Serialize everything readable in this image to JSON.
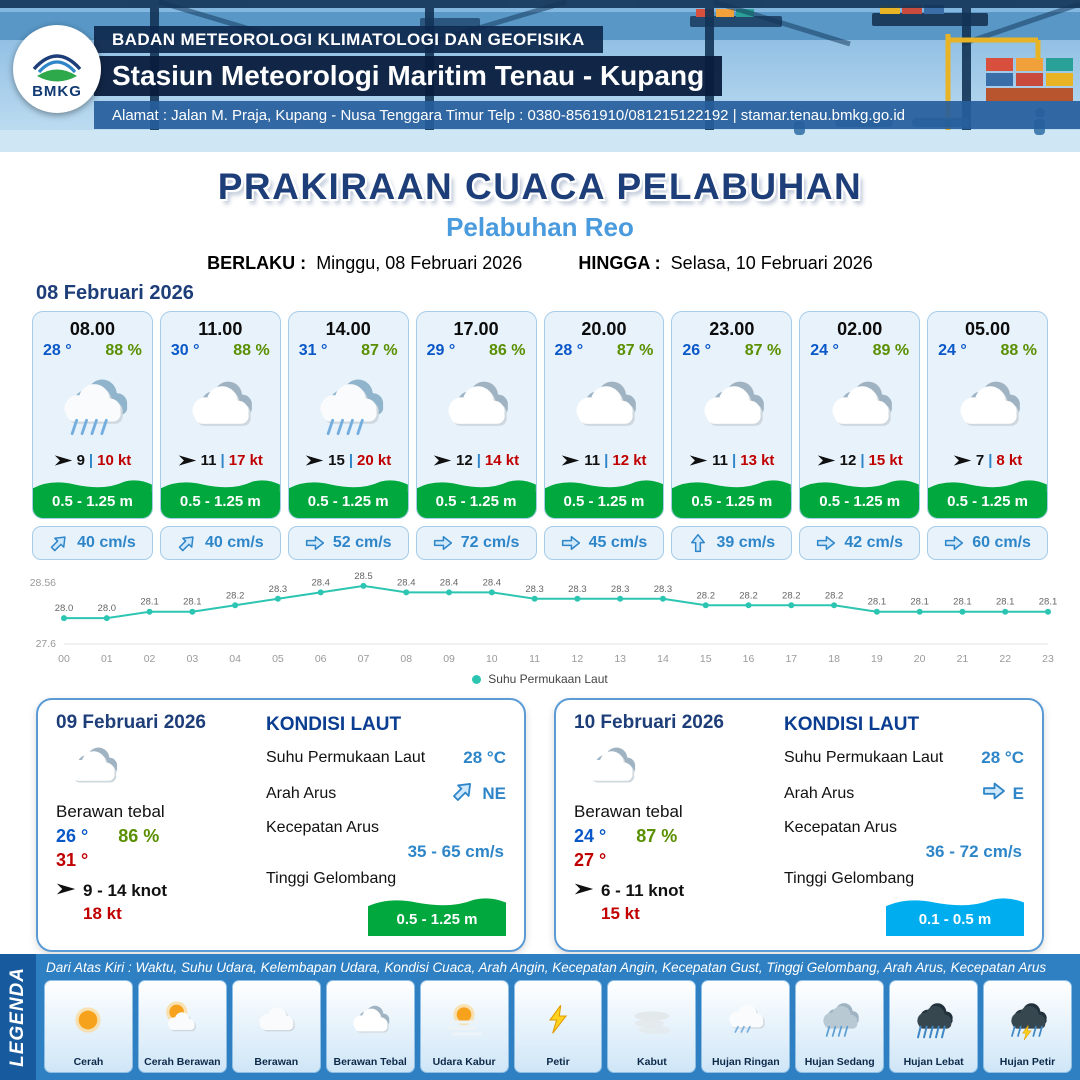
{
  "header": {
    "logo_label": "BMKG",
    "agency": "BADAN METEOROLOGI KLIMATOLOGI DAN GEOFISIKA",
    "station": "Stasiun Meteorologi Maritim Tenau - Kupang",
    "address": "Alamat : Jalan M. Praja, Kupang - Nusa Tenggara Timur Telp : 0380-8561910/081215122192  | stamar.tenau.bmkg.go.id"
  },
  "title": {
    "main": "PRAKIRAAN CUACA PELABUHAN",
    "subtitle": "Pelabuhan Reo",
    "berlaku_label": "BERLAKU :",
    "berlaku_value": "Minggu, 08 Februari 2026",
    "hingga_label": "HINGGA :",
    "hingga_value": "Selasa, 10 Februari 2026"
  },
  "labels": {
    "wind_sep": "|"
  },
  "forecast_date": "08 Februari 2026",
  "colors": {
    "wave_green": "#00a83e",
    "wave_blue": "#00aeef",
    "sst_line": "#2cc5b2",
    "accent_navy": "#1d3e78",
    "accent_blue": "#2e86c9",
    "temp_blue": "#0a58c8",
    "humidity_green": "#5a8f00",
    "gust_red": "#c00000"
  },
  "hourly": [
    {
      "time": "08.00",
      "temp": "28 °",
      "rh": "88 %",
      "icon": "rain",
      "wind_speed": "9",
      "gust": "10 kt",
      "wave": "0.5 - 1.25 m",
      "current": "40 cm/s",
      "current_dir": "NE"
    },
    {
      "time": "11.00",
      "temp": "30 °",
      "rh": "88 %",
      "icon": "cloud-thick",
      "wind_speed": "11",
      "gust": "17 kt",
      "wave": "0.5 - 1.25 m",
      "current": "40 cm/s",
      "current_dir": "NE"
    },
    {
      "time": "14.00",
      "temp": "31 °",
      "rh": "87 %",
      "icon": "rain",
      "wind_speed": "15",
      "gust": "20 kt",
      "wave": "0.5 - 1.25 m",
      "current": "52 cm/s",
      "current_dir": "E"
    },
    {
      "time": "17.00",
      "temp": "29 °",
      "rh": "86 %",
      "icon": "cloud-thick",
      "wind_speed": "12",
      "gust": "14 kt",
      "wave": "0.5 - 1.25 m",
      "current": "72 cm/s",
      "current_dir": "E"
    },
    {
      "time": "20.00",
      "temp": "28 °",
      "rh": "87 %",
      "icon": "cloud-thick",
      "wind_speed": "11",
      "gust": "12 kt",
      "wave": "0.5 - 1.25 m",
      "current": "45 cm/s",
      "current_dir": "E"
    },
    {
      "time": "23.00",
      "temp": "26 °",
      "rh": "87 %",
      "icon": "cloud-thick",
      "wind_speed": "11",
      "gust": "13 kt",
      "wave": "0.5 - 1.25 m",
      "current": "39 cm/s",
      "current_dir": "N"
    },
    {
      "time": "02.00",
      "temp": "24 °",
      "rh": "89 %",
      "icon": "cloud-thick",
      "wind_speed": "12",
      "gust": "15 kt",
      "wave": "0.5 - 1.25 m",
      "current": "42 cm/s",
      "current_dir": "E"
    },
    {
      "time": "05.00",
      "temp": "24 °",
      "rh": "88 %",
      "icon": "cloud-thick",
      "wind_speed": "7",
      "gust": "8 kt",
      "wave": "0.5 - 1.25 m",
      "current": "60 cm/s",
      "current_dir": "E"
    }
  ],
  "chart_data": {
    "type": "line",
    "series_name": "Suhu Permukaan Laut",
    "x": [
      "00",
      "01",
      "02",
      "03",
      "04",
      "05",
      "06",
      "07",
      "08",
      "09",
      "10",
      "11",
      "12",
      "13",
      "14",
      "15",
      "16",
      "17",
      "18",
      "19",
      "20",
      "21",
      "22",
      "23"
    ],
    "values": [
      28.0,
      28.0,
      28.1,
      28.1,
      28.2,
      28.3,
      28.4,
      28.5,
      28.4,
      28.4,
      28.4,
      28.3,
      28.3,
      28.3,
      28.3,
      28.2,
      28.2,
      28.2,
      28.2,
      28.1,
      28.1,
      28.1,
      28.1,
      28.1
    ],
    "ylim": [
      27.6,
      28.56
    ],
    "ylabel": "",
    "xlabel": "",
    "grid": false,
    "legend_position": "bottom",
    "line_color": "#2cc5b2"
  },
  "sea_labels": {
    "title": "KONDISI LAUT",
    "sst": "Suhu Permukaan Laut",
    "current_dir": "Arah Arus",
    "current_speed": "Kecepatan Arus",
    "wave": "Tinggi Gelombang"
  },
  "daily": [
    {
      "date": "09 Februari 2026",
      "icon": "cloud-thick",
      "condition": "Berawan tebal",
      "temp_min": "26 °",
      "rh": "86 %",
      "temp_max": "31 °",
      "wind": "9  - 14 knot",
      "gust": "18 kt",
      "sst": "28 °C",
      "current_dir": "NE",
      "current_speed": "35 - 65 cm/s",
      "wave": "0.5 - 1.25 m",
      "wave_color_key": "wave_green"
    },
    {
      "date": "10 Februari 2026",
      "icon": "cloud-thick",
      "condition": "Berawan tebal",
      "temp_min": "24 °",
      "rh": "87 %",
      "temp_max": "27 °",
      "wind": "6  - 11 knot",
      "gust": "15 kt",
      "sst": "28 °C",
      "current_dir": "E",
      "current_speed": "36 - 72 cm/s",
      "wave": "0.1 - 0.5 m",
      "wave_color_key": "wave_blue"
    }
  ],
  "legend": {
    "title": "LEGENDA",
    "description": "Dari Atas Kiri : Waktu, Suhu Udara, Kelembapan Udara, Kondisi Cuaca, Arah Angin, Kecepatan Angin, Kecepatan Gust, Tinggi Gelombang, Arah Arus, Kecepatan Arus",
    "items": [
      {
        "label": "Cerah",
        "icon": "sun"
      },
      {
        "label": "Cerah Berawan",
        "icon": "sun-cloud"
      },
      {
        "label": "Berawan",
        "icon": "cloud"
      },
      {
        "label": "Berawan Tebal",
        "icon": "cloud-thick"
      },
      {
        "label": "Udara Kabur",
        "icon": "haze"
      },
      {
        "label": "Petir",
        "icon": "lightning"
      },
      {
        "label": "Kabut",
        "icon": "fog"
      },
      {
        "label": "Hujan Ringan",
        "icon": "rain-light"
      },
      {
        "label": "Hujan Sedang",
        "icon": "rain-medium"
      },
      {
        "label": "Hujan Lebat",
        "icon": "rain-heavy"
      },
      {
        "label": "Hujan Petir",
        "icon": "rain-lightning"
      }
    ]
  }
}
